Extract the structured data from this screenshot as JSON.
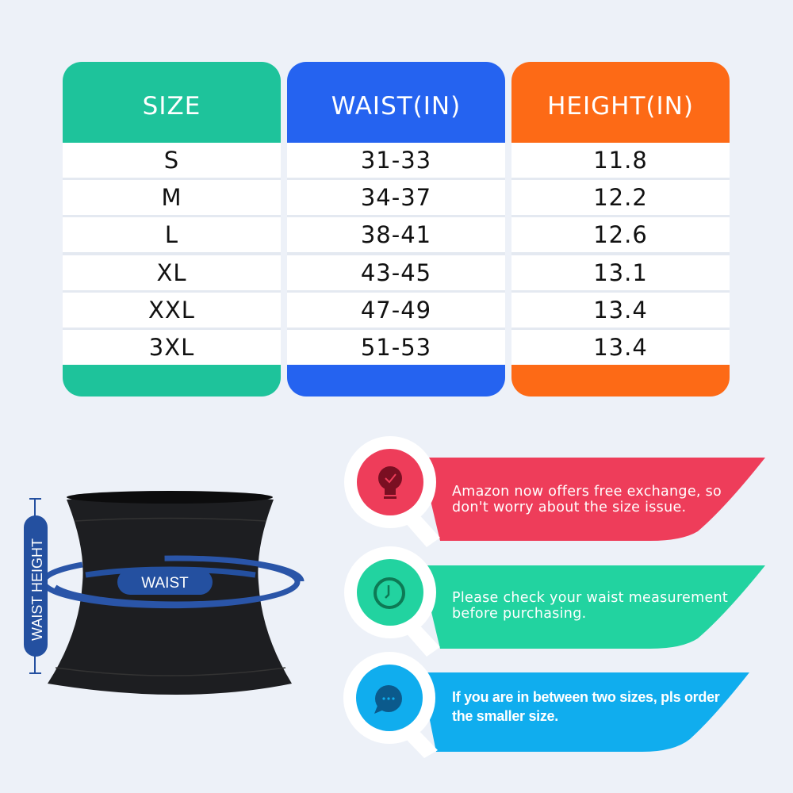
{
  "table": {
    "columns": [
      {
        "header": "SIZE",
        "color": "#1ec39b",
        "values": [
          "S",
          "M",
          "L",
          "XL",
          "XXL",
          "3XL"
        ]
      },
      {
        "header": "WAIST(IN)",
        "color": "#2563f0",
        "values": [
          "31-33",
          "34-37",
          "38-41",
          "43-45",
          "47-49",
          "51-53"
        ]
      },
      {
        "header": "HEIGHT(IN)",
        "color": "#fd6a16",
        "values": [
          "11.8",
          "12.2",
          "12.6",
          "13.1",
          "13.4",
          "13.4"
        ]
      }
    ]
  },
  "diagram": {
    "height_label": "WAIST HEIGHT",
    "waist_label": "WAIST",
    "accent": "#2450a0"
  },
  "tips": [
    {
      "icon": "lightbulb-check-icon",
      "text": "Amazon now offers free exchange, so don't worry about the size issue.",
      "color": "#ee3d5a",
      "icon_color": "#7a0f22"
    },
    {
      "icon": "clock-icon",
      "text": "Please check your waist measurement before purchasing.",
      "color": "#22d3a0",
      "icon_color": "#0d7a55"
    },
    {
      "icon": "chat-bubble-icon",
      "text": "If you are in between two sizes, pls order the smaller size.",
      "color": "#10adee",
      "icon_color": "#0b5a8c"
    }
  ]
}
